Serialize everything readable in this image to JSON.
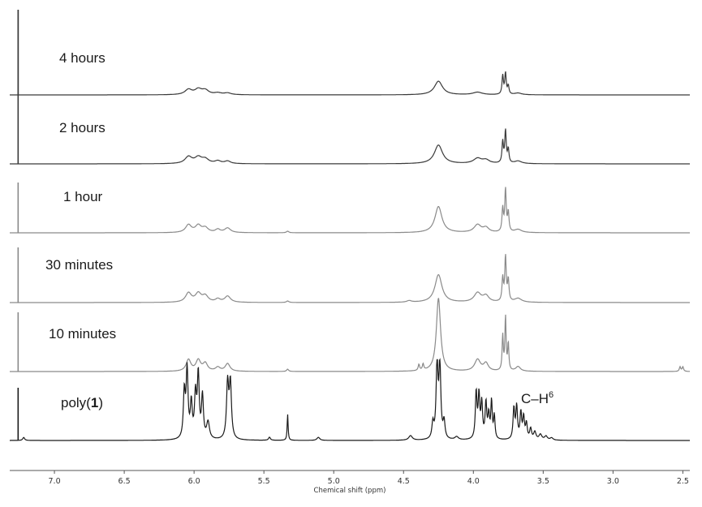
{
  "chart_data": {
    "type": "line",
    "title": "",
    "xlabel": "Chemical shift (ppm)",
    "ylabel": "",
    "x_reversed": true,
    "xlim": [
      7.32,
      2.45
    ],
    "x_ticks": [
      {
        "value": 7.0,
        "label": "7.0"
      },
      {
        "value": 6.5,
        "label": "6.5"
      },
      {
        "value": 6.0,
        "label": "6.0"
      },
      {
        "value": 5.5,
        "label": "5.5"
      },
      {
        "value": 5.0,
        "label": "5.0"
      },
      {
        "value": 4.5,
        "label": "4.5"
      },
      {
        "value": 4.0,
        "label": "4.0"
      },
      {
        "value": 3.5,
        "label": "3.5"
      },
      {
        "value": 3.0,
        "label": "3.0"
      },
      {
        "value": 2.5,
        "label": "2.5"
      }
    ],
    "grid": false,
    "legend": "none",
    "annotations": [
      {
        "text": "C–H",
        "superscript": "6",
        "near_ppm": 3.62,
        "trace": "poly(1)"
      }
    ],
    "series": [
      {
        "name": "4 hours",
        "color": "#3a3a3a",
        "solvent_peak": {
          "ppm": 7.26,
          "height": 0.95
        },
        "peaks": [
          {
            "ppm": 6.04,
            "height": 0.06,
            "width": 0.03
          },
          {
            "ppm": 5.97,
            "height": 0.06,
            "width": 0.03
          },
          {
            "ppm": 5.92,
            "height": 0.05,
            "width": 0.03
          },
          {
            "ppm": 5.83,
            "height": 0.02,
            "width": 0.03
          },
          {
            "ppm": 5.76,
            "height": 0.02,
            "width": 0.03
          },
          {
            "ppm": 4.25,
            "height": 0.16,
            "width": 0.035
          },
          {
            "ppm": 3.97,
            "height": 0.03,
            "width": 0.04
          },
          {
            "ppm": 3.79,
            "height": 0.22,
            "width": 0.006
          },
          {
            "ppm": 3.77,
            "height": 0.25,
            "width": 0.006
          },
          {
            "ppm": 3.75,
            "height": 0.1,
            "width": 0.006
          },
          {
            "ppm": 3.68,
            "height": 0.02,
            "width": 0.03
          }
        ]
      },
      {
        "name": "2 hours",
        "color": "#3a3a3a",
        "solvent_peak": {
          "ppm": 7.26,
          "height": 0.95
        },
        "peaks": [
          {
            "ppm": 6.04,
            "height": 0.08,
            "width": 0.03
          },
          {
            "ppm": 5.97,
            "height": 0.07,
            "width": 0.03
          },
          {
            "ppm": 5.92,
            "height": 0.05,
            "width": 0.03
          },
          {
            "ppm": 5.83,
            "height": 0.03,
            "width": 0.025
          },
          {
            "ppm": 5.76,
            "height": 0.03,
            "width": 0.025
          },
          {
            "ppm": 4.25,
            "height": 0.22,
            "width": 0.035
          },
          {
            "ppm": 3.97,
            "height": 0.06,
            "width": 0.035
          },
          {
            "ppm": 3.91,
            "height": 0.04,
            "width": 0.03
          },
          {
            "ppm": 3.79,
            "height": 0.25,
            "width": 0.006
          },
          {
            "ppm": 3.77,
            "height": 0.38,
            "width": 0.006
          },
          {
            "ppm": 3.75,
            "height": 0.16,
            "width": 0.006
          },
          {
            "ppm": 3.68,
            "height": 0.03,
            "width": 0.03
          }
        ]
      },
      {
        "name": "1 hour",
        "color": "#8a8a8a",
        "solvent_peak": {
          "ppm": 7.26,
          "height": 0.95
        },
        "peaks": [
          {
            "ppm": 6.04,
            "height": 0.1,
            "width": 0.025
          },
          {
            "ppm": 5.97,
            "height": 0.09,
            "width": 0.025
          },
          {
            "ppm": 5.92,
            "height": 0.06,
            "width": 0.025
          },
          {
            "ppm": 5.83,
            "height": 0.04,
            "width": 0.02
          },
          {
            "ppm": 5.76,
            "height": 0.06,
            "width": 0.025
          },
          {
            "ppm": 5.33,
            "height": 0.02,
            "width": 0.01
          },
          {
            "ppm": 4.25,
            "height": 0.34,
            "width": 0.03
          },
          {
            "ppm": 3.97,
            "height": 0.1,
            "width": 0.03
          },
          {
            "ppm": 3.91,
            "height": 0.06,
            "width": 0.025
          },
          {
            "ppm": 3.79,
            "height": 0.3,
            "width": 0.006
          },
          {
            "ppm": 3.77,
            "height": 0.55,
            "width": 0.006
          },
          {
            "ppm": 3.75,
            "height": 0.25,
            "width": 0.006
          },
          {
            "ppm": 3.68,
            "height": 0.04,
            "width": 0.03
          }
        ]
      },
      {
        "name": "30 minutes",
        "color": "#8a8a8a",
        "solvent_peak": {
          "ppm": 7.26,
          "height": 0.95
        },
        "peaks": [
          {
            "ppm": 6.04,
            "height": 0.12,
            "width": 0.025
          },
          {
            "ppm": 5.97,
            "height": 0.11,
            "width": 0.025
          },
          {
            "ppm": 5.92,
            "height": 0.08,
            "width": 0.025
          },
          {
            "ppm": 5.83,
            "height": 0.04,
            "width": 0.02
          },
          {
            "ppm": 5.76,
            "height": 0.08,
            "width": 0.025
          },
          {
            "ppm": 5.33,
            "height": 0.02,
            "width": 0.01
          },
          {
            "ppm": 4.46,
            "height": 0.02,
            "width": 0.02
          },
          {
            "ppm": 4.25,
            "height": 0.36,
            "width": 0.03
          },
          {
            "ppm": 3.97,
            "height": 0.12,
            "width": 0.03
          },
          {
            "ppm": 3.91,
            "height": 0.08,
            "width": 0.025
          },
          {
            "ppm": 3.79,
            "height": 0.3,
            "width": 0.006
          },
          {
            "ppm": 3.77,
            "height": 0.58,
            "width": 0.006
          },
          {
            "ppm": 3.75,
            "height": 0.28,
            "width": 0.006
          },
          {
            "ppm": 3.68,
            "height": 0.05,
            "width": 0.03
          }
        ]
      },
      {
        "name": "10 minutes",
        "color": "#8a8a8a",
        "solvent_peak": {
          "ppm": 7.26,
          "height": 0.92
        },
        "peaks": [
          {
            "ppm": 6.04,
            "height": 0.15,
            "width": 0.02
          },
          {
            "ppm": 5.97,
            "height": 0.14,
            "width": 0.02
          },
          {
            "ppm": 5.92,
            "height": 0.1,
            "width": 0.02
          },
          {
            "ppm": 5.83,
            "height": 0.05,
            "width": 0.02
          },
          {
            "ppm": 5.76,
            "height": 0.1,
            "width": 0.02
          },
          {
            "ppm": 5.33,
            "height": 0.03,
            "width": 0.008
          },
          {
            "ppm": 4.39,
            "height": 0.08,
            "width": 0.006
          },
          {
            "ppm": 4.36,
            "height": 0.08,
            "width": 0.006
          },
          {
            "ppm": 4.25,
            "height": 0.95,
            "width": 0.018
          },
          {
            "ppm": 3.97,
            "height": 0.15,
            "width": 0.025
          },
          {
            "ppm": 3.91,
            "height": 0.1,
            "width": 0.02
          },
          {
            "ppm": 3.79,
            "height": 0.45,
            "width": 0.005
          },
          {
            "ppm": 3.77,
            "height": 0.7,
            "width": 0.005
          },
          {
            "ppm": 3.75,
            "height": 0.35,
            "width": 0.005
          },
          {
            "ppm": 3.68,
            "height": 0.06,
            "width": 0.02
          },
          {
            "ppm": 2.52,
            "height": 0.06,
            "width": 0.006
          },
          {
            "ppm": 2.5,
            "height": 0.06,
            "width": 0.006
          }
        ]
      },
      {
        "name": "poly(1)",
        "color": "#1a1a1a",
        "solvent_peak": {
          "ppm": 7.26,
          "height": 0.92
        },
        "peaks": [
          {
            "ppm": 7.22,
            "height": 0.04,
            "width": 0.008
          },
          {
            "ppm": 6.07,
            "height": 0.6,
            "width": 0.008
          },
          {
            "ppm": 6.05,
            "height": 0.88,
            "width": 0.008
          },
          {
            "ppm": 6.02,
            "height": 0.45,
            "width": 0.008
          },
          {
            "ppm": 5.99,
            "height": 0.55,
            "width": 0.008
          },
          {
            "ppm": 5.97,
            "height": 0.82,
            "width": 0.008
          },
          {
            "ppm": 5.94,
            "height": 0.55,
            "width": 0.008
          },
          {
            "ppm": 5.9,
            "height": 0.22,
            "width": 0.012
          },
          {
            "ppm": 5.76,
            "height": 0.72,
            "width": 0.009
          },
          {
            "ppm": 5.74,
            "height": 0.72,
            "width": 0.009
          },
          {
            "ppm": 5.46,
            "height": 0.04,
            "width": 0.008
          },
          {
            "ppm": 5.33,
            "height": 0.34,
            "width": 0.004
          },
          {
            "ppm": 5.11,
            "height": 0.04,
            "width": 0.012
          },
          {
            "ppm": 4.45,
            "height": 0.06,
            "width": 0.015
          },
          {
            "ppm": 4.29,
            "height": 0.2,
            "width": 0.008
          },
          {
            "ppm": 4.26,
            "height": 0.98,
            "width": 0.008
          },
          {
            "ppm": 4.24,
            "height": 0.95,
            "width": 0.008
          },
          {
            "ppm": 4.21,
            "height": 0.22,
            "width": 0.008
          },
          {
            "ppm": 4.12,
            "height": 0.04,
            "width": 0.015
          },
          {
            "ppm": 3.98,
            "height": 0.6,
            "width": 0.007
          },
          {
            "ppm": 3.96,
            "height": 0.55,
            "width": 0.007
          },
          {
            "ppm": 3.94,
            "height": 0.45,
            "width": 0.007
          },
          {
            "ppm": 3.91,
            "height": 0.46,
            "width": 0.007
          },
          {
            "ppm": 3.89,
            "height": 0.3,
            "width": 0.007
          },
          {
            "ppm": 3.87,
            "height": 0.48,
            "width": 0.006
          },
          {
            "ppm": 3.85,
            "height": 0.3,
            "width": 0.006
          },
          {
            "ppm": 3.71,
            "height": 0.4,
            "width": 0.007
          },
          {
            "ppm": 3.69,
            "height": 0.42,
            "width": 0.007
          },
          {
            "ppm": 3.66,
            "height": 0.34,
            "width": 0.007
          },
          {
            "ppm": 3.64,
            "height": 0.28,
            "width": 0.007
          },
          {
            "ppm": 3.62,
            "height": 0.2,
            "width": 0.007
          },
          {
            "ppm": 3.59,
            "height": 0.14,
            "width": 0.008
          },
          {
            "ppm": 3.56,
            "height": 0.1,
            "width": 0.01
          },
          {
            "ppm": 3.52,
            "height": 0.07,
            "width": 0.012
          },
          {
            "ppm": 3.48,
            "height": 0.05,
            "width": 0.012
          },
          {
            "ppm": 3.44,
            "height": 0.03,
            "width": 0.012
          }
        ]
      }
    ]
  },
  "trace_labels": [
    {
      "key": "4 hours",
      "text": "4 hours",
      "bold": ""
    },
    {
      "key": "2 hours",
      "text": "2 hours",
      "bold": ""
    },
    {
      "key": "1 hour",
      "text": "1 hour",
      "bold": ""
    },
    {
      "key": "30 minutes",
      "text": "30 minutes",
      "bold": ""
    },
    {
      "key": "10 minutes",
      "text": "10 minutes",
      "bold": ""
    },
    {
      "key": "poly(1)",
      "text": "poly(",
      "bold": "1",
      "suffix": ")"
    }
  ]
}
